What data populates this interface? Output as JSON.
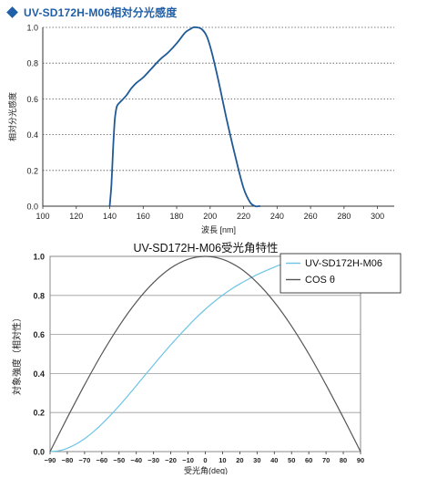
{
  "header": {
    "title": "UV-SD172H-M06相対分光感度",
    "bullet_color": "#1f5fa8"
  },
  "chart_data": [
    {
      "type": "line",
      "title": "",
      "xlabel": "波長 [nm]",
      "ylabel": "相対分光感度",
      "xlim": [
        100,
        310
      ],
      "ylim": [
        0,
        1.0
      ],
      "x_ticks": [
        100,
        120,
        140,
        160,
        180,
        200,
        220,
        240,
        260,
        280,
        300
      ],
      "y_ticks": [
        0.0,
        0.2,
        0.4,
        0.6,
        0.8,
        1.0
      ],
      "x_tick_labels": [
        "100",
        "120",
        "140",
        "160",
        "180",
        "200",
        "220",
        "240",
        "260",
        "280",
        "300"
      ],
      "y_tick_labels": [
        "0.0",
        "0.2",
        "0.4",
        "0.6",
        "0.8",
        "1.0"
      ],
      "grid": "horizontal-dotted",
      "series": [
        {
          "color": "#1f5a96",
          "x": [
            140,
            141,
            142,
            143,
            144,
            145,
            147,
            150,
            153,
            156,
            160,
            165,
            170,
            175,
            180,
            185,
            188,
            190,
            192,
            195,
            198,
            201,
            205,
            210,
            215,
            220,
            224,
            227,
            229,
            230
          ],
          "y": [
            0.0,
            0.12,
            0.32,
            0.48,
            0.55,
            0.57,
            0.59,
            0.62,
            0.66,
            0.69,
            0.72,
            0.77,
            0.82,
            0.86,
            0.91,
            0.97,
            0.99,
            1.0,
            1.0,
            0.99,
            0.95,
            0.86,
            0.7,
            0.48,
            0.28,
            0.1,
            0.02,
            0.0,
            0.0,
            0.0
          ]
        }
      ]
    },
    {
      "type": "line",
      "title": "UV-SD172H-M06受光角特性",
      "xlabel": "受光角(deg)",
      "ylabel": "対象強度（相対性）",
      "xlim": [
        -90,
        90
      ],
      "ylim": [
        0,
        1.0
      ],
      "x_ticks": [
        -90,
        -80,
        -70,
        -60,
        -50,
        -40,
        -30,
        -20,
        -10,
        0,
        10,
        20,
        30,
        40,
        50,
        60,
        70,
        80,
        90
      ],
      "y_ticks": [
        0.0,
        0.2,
        0.4,
        0.6,
        0.8,
        1.0
      ],
      "x_tick_labels": [
        "−90",
        "−80",
        "−70",
        "−60",
        "−50",
        "−40",
        "−30",
        "−20",
        "−10",
        "0",
        "10",
        "20",
        "30",
        "40",
        "50",
        "60",
        "70",
        "80",
        "90"
      ],
      "y_tick_labels": [
        "0.0",
        "0.2",
        "0.4",
        "0.6",
        "0.8",
        "1.0"
      ],
      "grid": "horizontal",
      "legend": "top-right",
      "series": [
        {
          "name": "UV-SD172H-M06",
          "color": "#6cc4e6",
          "x": [
            -90,
            -85,
            -80,
            -75,
            -70,
            -65,
            -60,
            -55,
            -50,
            -45,
            -40,
            -35,
            -30,
            -25,
            -20,
            -15,
            -10,
            -5,
            0,
            5,
            10,
            15,
            20,
            25,
            30,
            35,
            40,
            45,
            50,
            55,
            60,
            65,
            70,
            75,
            80,
            85,
            90
          ],
          "y": [
            0.0,
            0.004,
            0.017,
            0.038,
            0.066,
            0.101,
            0.141,
            0.186,
            0.234,
            0.285,
            0.338,
            0.391,
            0.444,
            0.496,
            0.547,
            0.596,
            0.643,
            0.688,
            0.729,
            0.767,
            0.801,
            0.832,
            0.859,
            0.883,
            0.906,
            0.926,
            0.945,
            0.962,
            0.977,
            0.989,
            0.997,
            1.0,
            0.997,
            0.989,
            0.977,
            0.962,
            0.945
          ]
        },
        {
          "name": "COS θ",
          "color": "#555555",
          "x": [
            -90,
            -80,
            -70,
            -60,
            -50,
            -40,
            -30,
            -20,
            -10,
            0,
            10,
            20,
            30,
            40,
            50,
            60,
            70,
            80,
            90
          ],
          "y": [
            0.0,
            0.174,
            0.342,
            0.5,
            0.643,
            0.766,
            0.866,
            0.94,
            0.985,
            1.0,
            0.985,
            0.94,
            0.866,
            0.766,
            0.643,
            0.5,
            0.342,
            0.174,
            0.0
          ]
        }
      ]
    }
  ]
}
